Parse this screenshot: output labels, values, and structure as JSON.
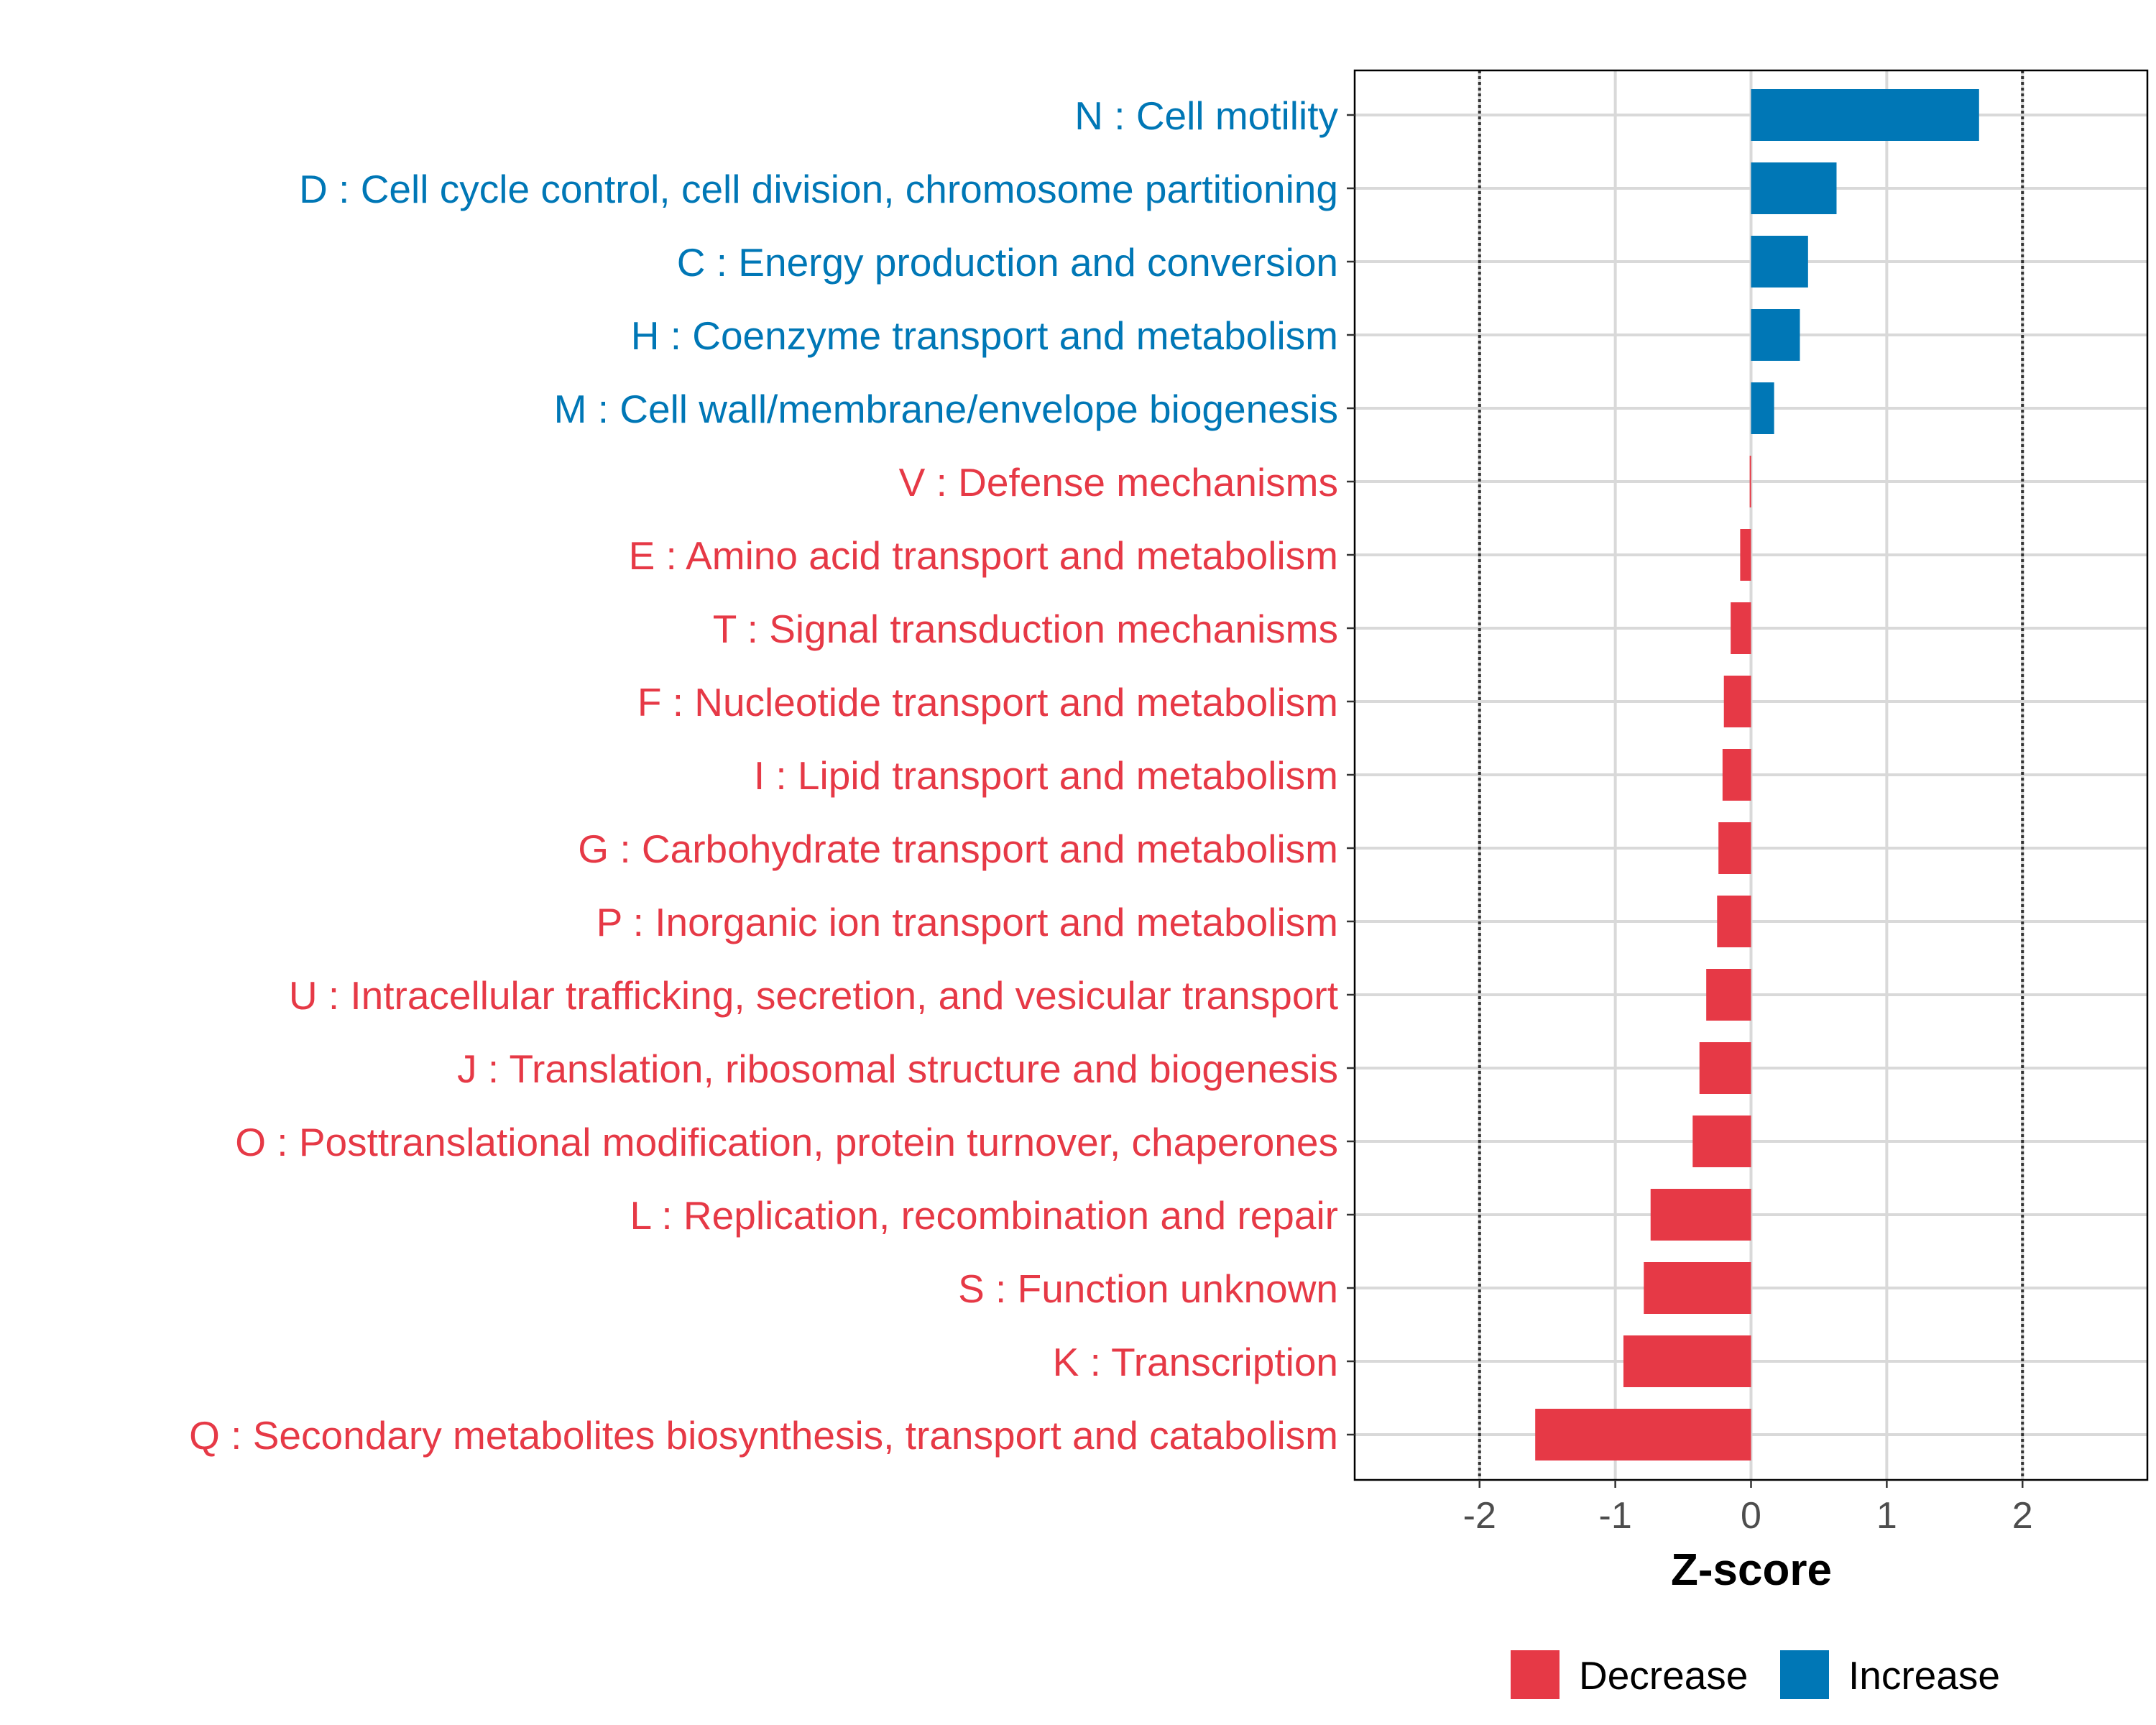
{
  "chart_data": {
    "type": "bar",
    "orientation": "horizontal",
    "xlabel": "Z-score",
    "ylabel": "",
    "xlim": [
      -2.92,
      2.92
    ],
    "xticks": [
      -2,
      -1,
      0,
      1,
      2
    ],
    "tick_labels": [
      "-2",
      "-1",
      "0",
      "1",
      "2"
    ],
    "reference_lines": [
      -2,
      2
    ],
    "grid": true,
    "legend_position": "bottom",
    "legend": [
      {
        "name": "Decrease",
        "color": "#E63946"
      },
      {
        "name": "Increase",
        "color": "#0077B6"
      }
    ],
    "categories": [
      "N : Cell motility",
      "D : Cell cycle control, cell division, chromosome partitioning",
      "C : Energy production and conversion",
      "H : Coenzyme transport and metabolism",
      "M : Cell wall/membrane/envelope biogenesis",
      "V : Defense mechanisms",
      "E : Amino acid transport and metabolism",
      "T : Signal transduction mechanisms",
      "F : Nucleotide transport and metabolism",
      "I : Lipid transport and metabolism",
      "G : Carbohydrate transport and metabolism",
      "P : Inorganic ion transport and metabolism",
      "U : Intracellular trafficking, secretion, and vesicular transport",
      "J : Translation, ribosomal structure and biogenesis",
      "O : Posttranslational modification, protein turnover, chaperones",
      "L : Replication, recombination and repair",
      "S : Function unknown",
      "K : Transcription",
      "Q : Secondary metabolites biosynthesis, transport and catabolism"
    ],
    "values": [
      1.68,
      0.63,
      0.42,
      0.36,
      0.17,
      -0.01,
      -0.08,
      -0.15,
      -0.2,
      -0.21,
      -0.24,
      -0.25,
      -0.33,
      -0.38,
      -0.43,
      -0.74,
      -0.79,
      -0.94,
      -1.59
    ],
    "direction": [
      "Increase",
      "Increase",
      "Increase",
      "Increase",
      "Increase",
      "Decrease",
      "Decrease",
      "Decrease",
      "Decrease",
      "Decrease",
      "Decrease",
      "Decrease",
      "Decrease",
      "Decrease",
      "Decrease",
      "Decrease",
      "Decrease",
      "Decrease",
      "Decrease"
    ]
  }
}
